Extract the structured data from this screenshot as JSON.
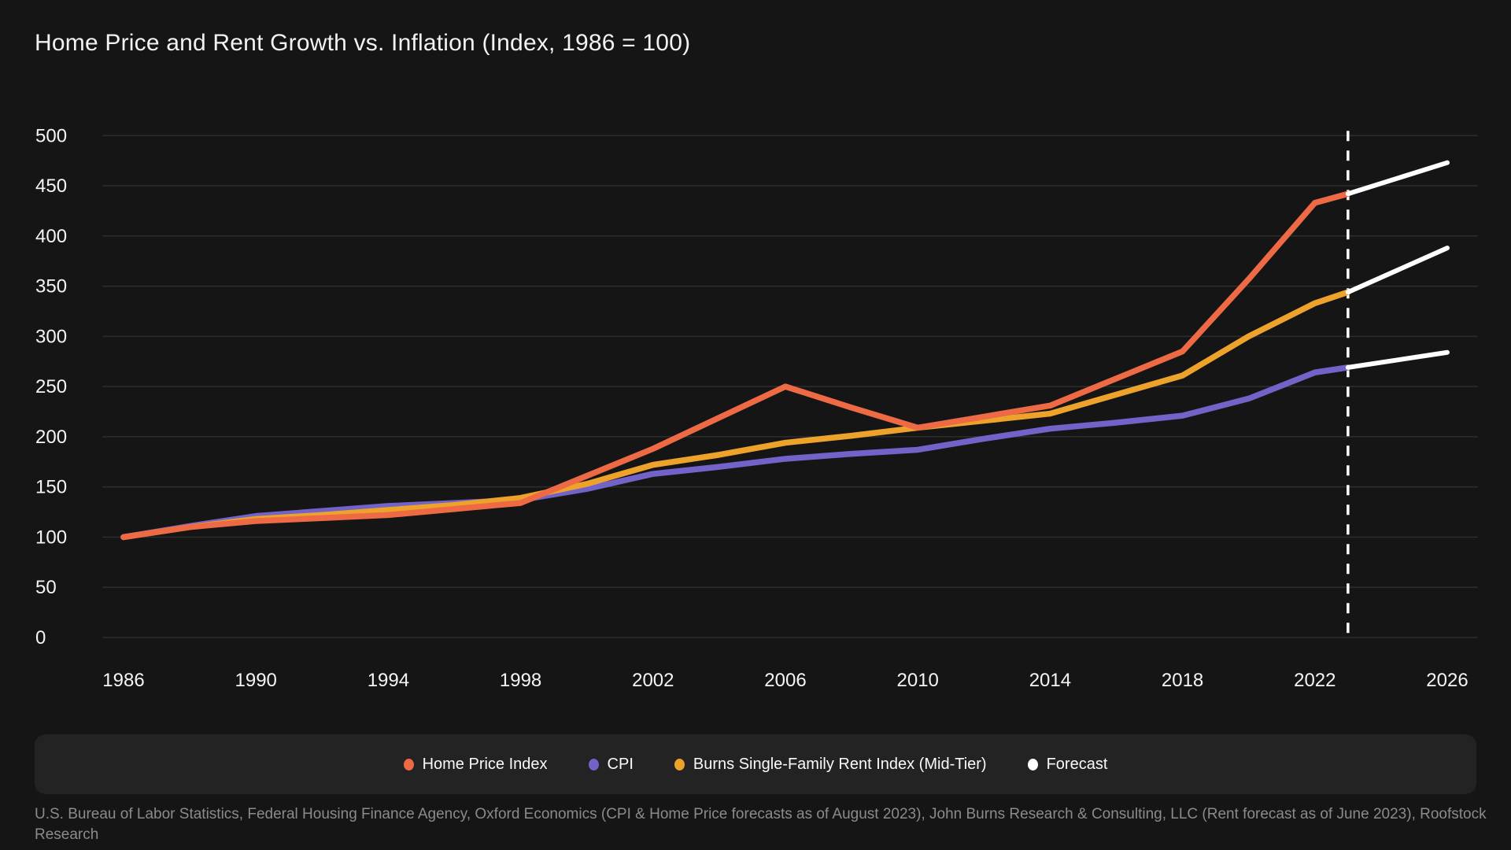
{
  "title": "Home Price and Rent Growth vs. Inflation (Index, 1986 = 100)",
  "chart_data": {
    "type": "line",
    "title": "Home Price and Rent Growth vs. Inflation (Index, 1986 = 100)",
    "x": [
      1986,
      1988,
      1990,
      1992,
      1994,
      1996,
      1998,
      2000,
      2002,
      2004,
      2006,
      2008,
      2010,
      2012,
      2014,
      2016,
      2018,
      2020,
      2022,
      2023
    ],
    "series": [
      {
        "name": "CPI",
        "color": "#7263c9",
        "values": [
          100,
          111,
          121,
          126,
          131,
          134,
          137,
          148,
          163,
          170,
          178,
          183,
          187,
          198,
          208,
          214,
          221,
          238,
          264,
          269
        ]
      },
      {
        "name": "Burns Single-Family Rent Index (Mid-Tier)",
        "color": "#eda32b",
        "values": [
          100,
          110,
          118,
          122,
          127,
          132,
          139,
          153,
          172,
          182,
          194,
          201,
          209,
          216,
          223,
          242,
          261,
          300,
          333,
          344
        ]
      },
      {
        "name": "Home Price Index",
        "color": "#ed6a45",
        "values": [
          100,
          110,
          116,
          119,
          122,
          128,
          134,
          161,
          188,
          219,
          250,
          229,
          209,
          220,
          231,
          258,
          285,
          357,
          433,
          442
        ]
      }
    ],
    "forecast": {
      "name": "Forecast",
      "color": "#ffffff",
      "segments": [
        {
          "x": [
            2023,
            2026
          ],
          "values": [
            442,
            473
          ]
        },
        {
          "x": [
            2023,
            2026
          ],
          "values": [
            344,
            388
          ]
        },
        {
          "x": [
            2023,
            2026
          ],
          "values": [
            269,
            284
          ]
        }
      ]
    },
    "forecast_start": 2023,
    "xticks": [
      1986,
      1990,
      1994,
      1998,
      2002,
      2006,
      2010,
      2014,
      2018,
      2022,
      2026
    ],
    "yticks": [
      0,
      50,
      100,
      150,
      200,
      250,
      300,
      350,
      400,
      450,
      500
    ],
    "ylim": [
      0,
      500
    ],
    "xlim": [
      1986,
      2026
    ],
    "grid": true,
    "grid_color": "#2d2d2d",
    "legend_position": "bottom"
  },
  "legend": {
    "items": [
      {
        "label": "Home Price Index",
        "color": "#ed6a45"
      },
      {
        "label": "CPI",
        "color": "#7263c9"
      },
      {
        "label": "Burns Single-Family Rent Index (Mid-Tier)",
        "color": "#eda32b"
      },
      {
        "label": "Forecast",
        "color": "#ffffff"
      }
    ]
  },
  "source": "U.S. Bureau of Labor Statistics, Federal Housing Finance Agency, Oxford Economics (CPI & Home Price forecasts as of August 2023), John Burns Research & Consulting, LLC (Rent forecast as of June 2023), Roofstock Research"
}
